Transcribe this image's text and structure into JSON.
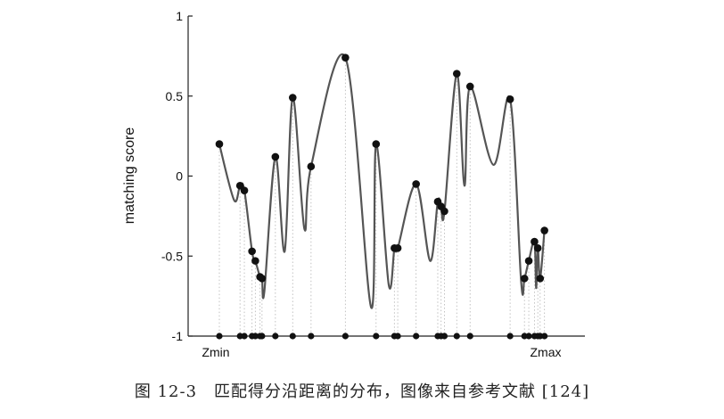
{
  "caption": "图 12-3　匹配得分沿距离的分布，图像来自参考文献 [124]",
  "chart_data": {
    "type": "line",
    "title": "",
    "xlabel": "",
    "ylabel": "matching score",
    "ylim": [
      -1,
      1
    ],
    "yticks": [
      "1",
      "0.5",
      "0",
      "-0.5",
      "-1"
    ],
    "xtick_labels": [
      "Zmin",
      "Zmax"
    ],
    "xlim": [
      0,
      1
    ],
    "grid": false,
    "series": [
      {
        "marker": "dot",
        "x": [
          0.0,
          0.062,
          0.075,
          0.098,
          0.108,
          0.122,
          0.128,
          0.168,
          0.22,
          0.275,
          0.378,
          0.47,
          0.525,
          0.535,
          0.59,
          0.655,
          0.665,
          0.675,
          0.712,
          0.752,
          0.872,
          0.915,
          0.928,
          0.945,
          0.955,
          0.962,
          0.975
        ],
        "y": [
          0.2,
          -0.06,
          -0.09,
          -0.47,
          -0.53,
          -0.63,
          -0.64,
          0.12,
          0.49,
          0.06,
          0.74,
          0.2,
          -0.45,
          -0.45,
          -0.05,
          -0.16,
          -0.19,
          -0.22,
          0.64,
          0.56,
          0.48,
          -0.64,
          -0.53,
          -0.41,
          -0.45,
          -0.64,
          -0.34
        ]
      }
    ],
    "minima": [
      {
        "x": 0.044,
        "y": -0.15
      },
      {
        "x": 0.135,
        "y": -0.72
      },
      {
        "x": 0.196,
        "y": -0.47
      },
      {
        "x": 0.255,
        "y": -0.33
      },
      {
        "x": 0.455,
        "y": -0.82
      },
      {
        "x": 0.508,
        "y": -0.68
      },
      {
        "x": 0.632,
        "y": -0.53
      },
      {
        "x": 0.735,
        "y": -0.06
      },
      {
        "x": 0.822,
        "y": 0.07
      },
      {
        "x": 0.905,
        "y": -0.66
      },
      {
        "x": 0.95,
        "y": -0.7
      }
    ]
  }
}
